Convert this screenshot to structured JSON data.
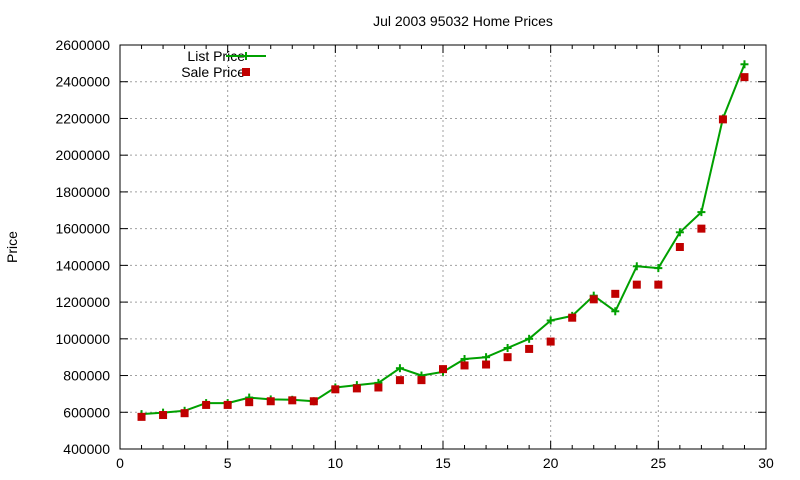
{
  "chart_data": {
    "type": "line",
    "title": "Jul 2003 95032 Home Prices",
    "xlabel": "",
    "ylabel": "Price",
    "xlim": [
      0,
      30
    ],
    "ylim": [
      400000,
      2600000
    ],
    "xticks": [
      0,
      5,
      10,
      15,
      20,
      25,
      30
    ],
    "xtick_labels": [
      "0",
      "5",
      "10",
      "15",
      "20",
      "25",
      "30"
    ],
    "yticks": [
      400000,
      600000,
      800000,
      1000000,
      1200000,
      1400000,
      1600000,
      1800000,
      2000000,
      2200000,
      2400000,
      2600000
    ],
    "ytick_labels": [
      "400000",
      "600000",
      "800000",
      "1000000",
      "1200000",
      "1400000",
      "1600000",
      "1800000",
      "2000000",
      "2200000",
      "2400000",
      "2600000"
    ],
    "grid": true,
    "legend_position": "top-left",
    "colors": {
      "list": "#00a000",
      "sale": "#c00000"
    },
    "series": [
      {
        "name": "List Price",
        "style": "line+plus",
        "x": [
          1,
          2,
          3,
          4,
          5,
          6,
          7,
          8,
          9,
          10,
          11,
          12,
          13,
          14,
          15,
          16,
          17,
          18,
          19,
          20,
          21,
          22,
          23,
          24,
          25,
          26,
          27,
          28,
          29
        ],
        "values": [
          590000,
          598000,
          608000,
          650000,
          650000,
          680000,
          670000,
          668000,
          660000,
          735000,
          748000,
          760000,
          840000,
          800000,
          820000,
          890000,
          900000,
          950000,
          1000000,
          1100000,
          1125000,
          1235000,
          1150000,
          1395000,
          1385000,
          1580000,
          1690000,
          2200000,
          2495000
        ]
      },
      {
        "name": "Sale Price",
        "style": "marker-square",
        "x": [
          1,
          2,
          3,
          4,
          5,
          6,
          7,
          8,
          9,
          10,
          11,
          12,
          13,
          14,
          15,
          16,
          17,
          18,
          19,
          20,
          21,
          22,
          23,
          24,
          25,
          26,
          27,
          28,
          29
        ],
        "values": [
          575000,
          585000,
          595000,
          640000,
          640000,
          655000,
          660000,
          665000,
          660000,
          725000,
          730000,
          735000,
          775000,
          775000,
          835000,
          855000,
          860000,
          900000,
          945000,
          985000,
          1115000,
          1215000,
          1245000,
          1295000,
          1295000,
          1500000,
          1600000,
          2195000,
          2425000
        ]
      }
    ]
  }
}
